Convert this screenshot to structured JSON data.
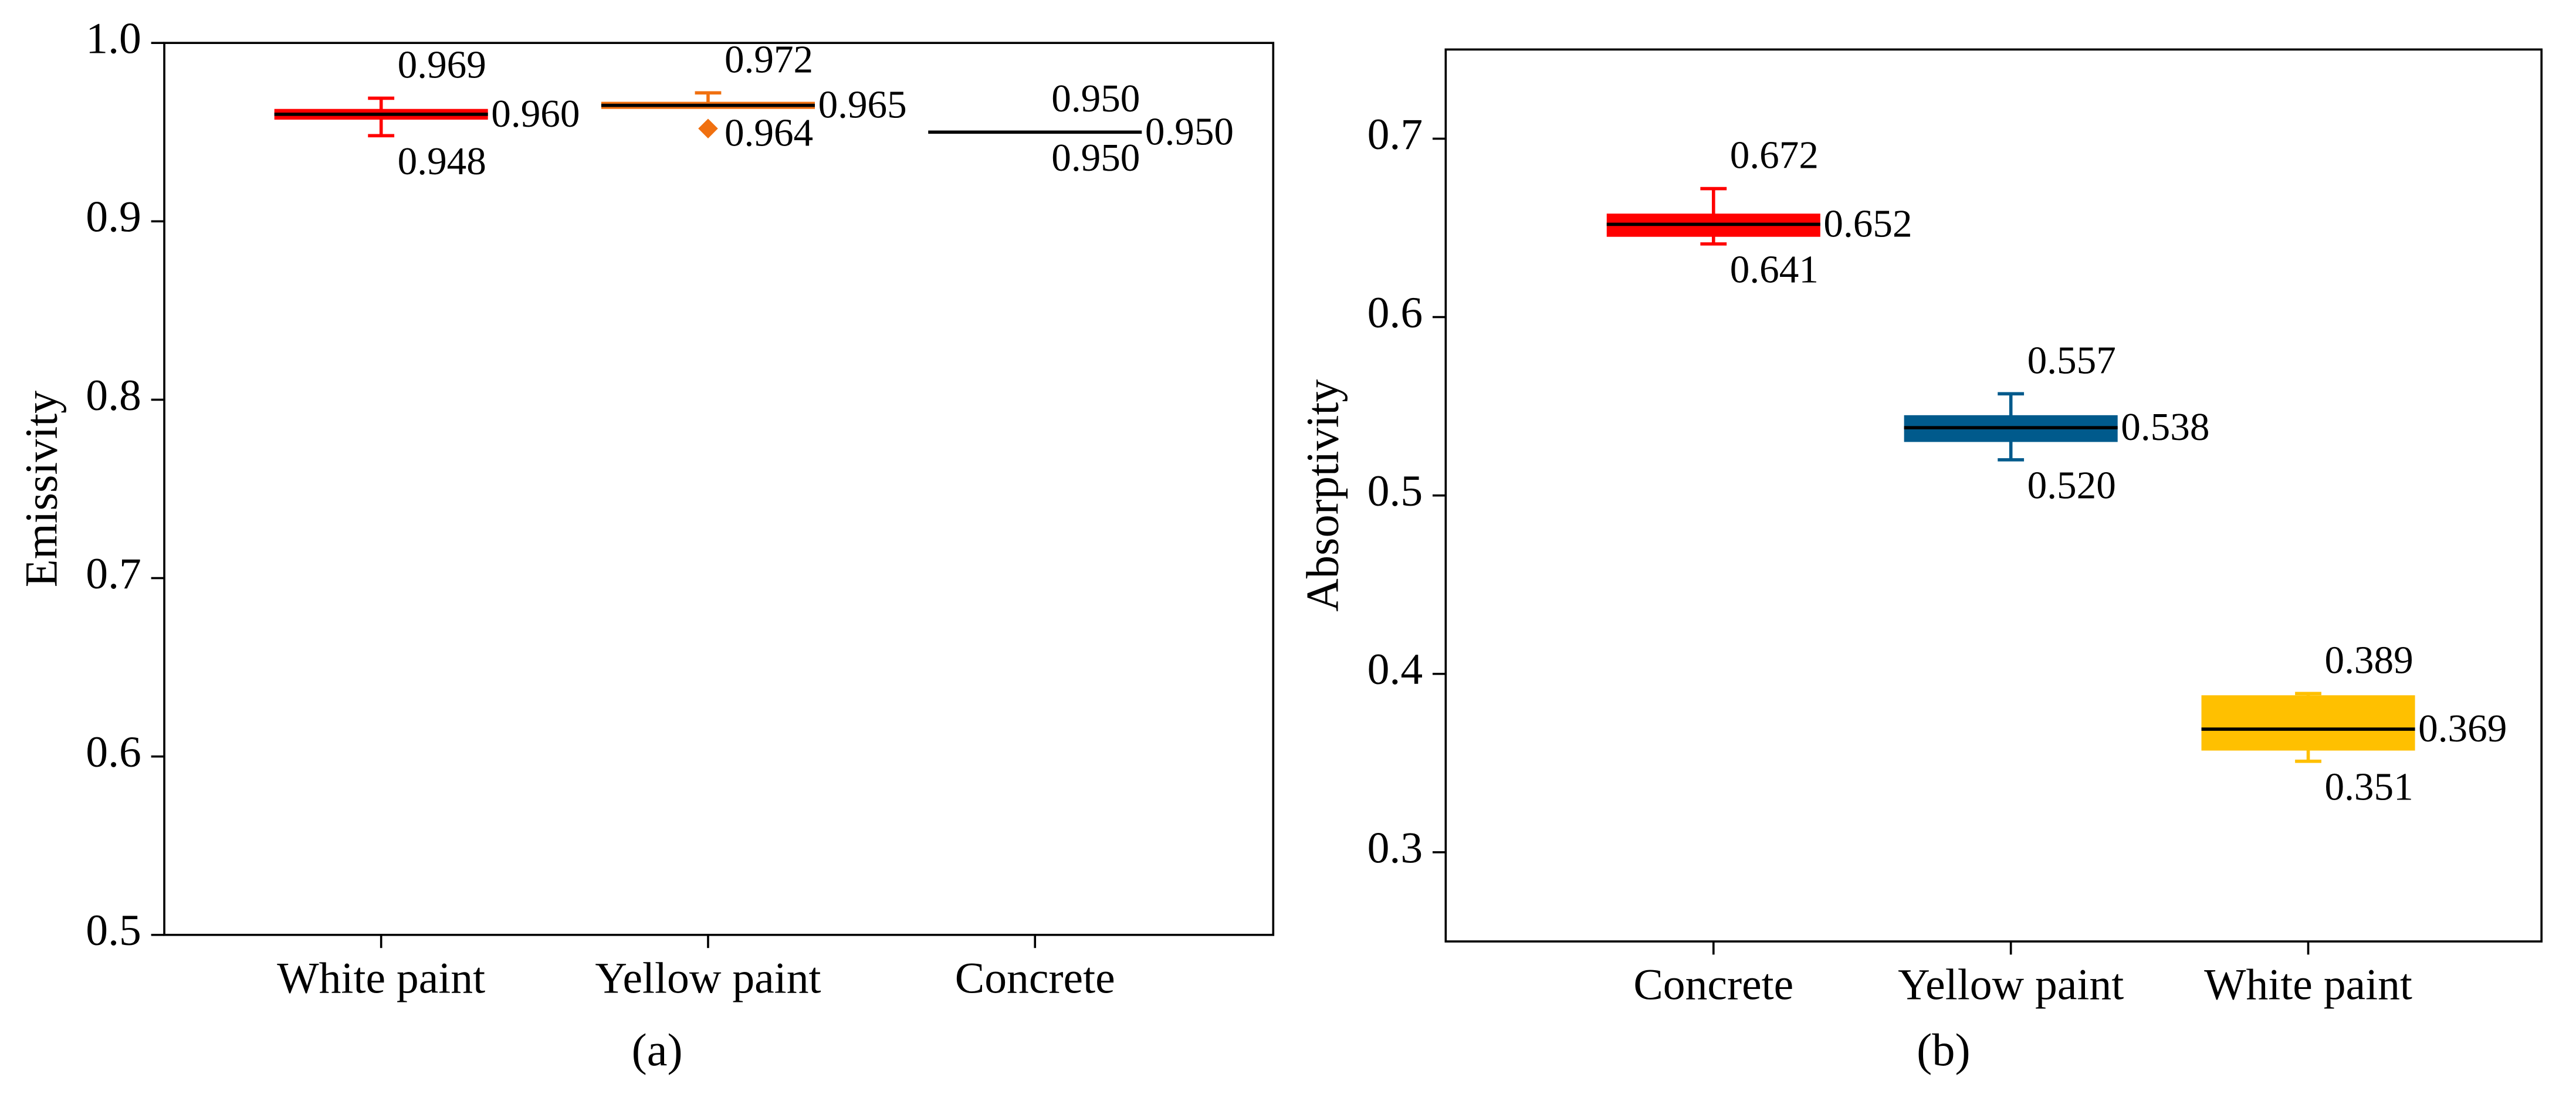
{
  "chart_data": [
    {
      "type": "box",
      "caption": "(a)",
      "ylabel": "Emissivity",
      "categories": [
        "White paint",
        "Yellow paint",
        "Concrete"
      ],
      "colors": [
        "#ff0000",
        "#f07010",
        "#000000"
      ],
      "q1": [
        0.957,
        0.963,
        0.95
      ],
      "q3": [
        0.963,
        0.967,
        0.95
      ],
      "mean": [
        0.96,
        0.965,
        0.95
      ],
      "mean_labels": [
        "0.960",
        "0.965",
        "0.950"
      ],
      "max": [
        0.969,
        0.972,
        0.95
      ],
      "max_labels": [
        "0.969",
        "0.972",
        "0.950"
      ],
      "min": [
        0.948,
        0.964,
        0.95
      ],
      "min_labels": [
        "0.948",
        "0.964",
        "0.950"
      ],
      "outliers": [
        [],
        [
          0.952
        ],
        []
      ],
      "ylim": [
        0.5,
        1.0
      ],
      "yticks": [
        0.5,
        0.6,
        0.7,
        0.8,
        0.9,
        {
          "value": 1,
          "label": "1.0"
        }
      ]
    },
    {
      "type": "box",
      "caption": "(b)",
      "ylabel": "Absorptivity",
      "categories": [
        "Concrete",
        "Yellow paint",
        "White paint"
      ],
      "colors": [
        "#ff0000",
        "#005a8c",
        "#ffc000"
      ],
      "q1": [
        0.645,
        0.53,
        0.357
      ],
      "q3": [
        0.658,
        0.545,
        0.388
      ],
      "mean": [
        0.652,
        0.538,
        0.369
      ],
      "mean_labels": [
        "0.652",
        "0.538",
        "0.369"
      ],
      "max": [
        0.672,
        0.557,
        0.389
      ],
      "max_labels": [
        "0.672",
        "0.557",
        "0.389"
      ],
      "min": [
        0.641,
        0.52,
        0.351
      ],
      "min_labels": [
        "0.641",
        "0.520",
        "0.351"
      ],
      "outliers": [
        [],
        [],
        []
      ],
      "ylim": [
        0.25,
        0.75
      ],
      "yticks": [
        0.3,
        0.4,
        0.5,
        0.6,
        0.7
      ]
    }
  ]
}
